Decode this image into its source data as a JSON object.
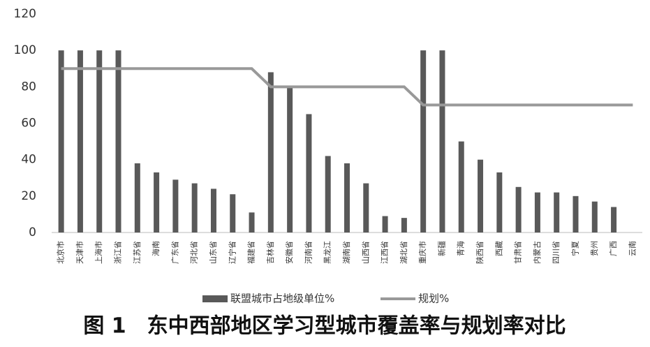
{
  "chart_data": {
    "type": "bar",
    "title": "图 1　东中西部地区学习型城市覆盖率与规划率对比",
    "categories": [
      "北京市",
      "天津市",
      "上海市",
      "浙江省",
      "江苏省",
      "海南",
      "广东省",
      "河北省",
      "山东省",
      "辽宁省",
      "福建省",
      "吉林省",
      "安徽省",
      "河南省",
      "黑龙江",
      "湖南省",
      "山西省",
      "江西省",
      "湖北省",
      "重庆市",
      "新疆",
      "青海",
      "陕西省",
      "西藏",
      "甘肃省",
      "内蒙古",
      "四川省",
      "宁夏",
      "贵州",
      "广西",
      "云南"
    ],
    "series": [
      {
        "name": "联盟城市占地级单位%",
        "type": "bar",
        "color": "#595959",
        "values": [
          100,
          100,
          100,
          100,
          38,
          33,
          29,
          27,
          24,
          21,
          11,
          88,
          80,
          65,
          42,
          38,
          27,
          9,
          8,
          100,
          100,
          50,
          40,
          33,
          25,
          22,
          22,
          20,
          17,
          14,
          0
        ]
      },
      {
        "name": "规划%",
        "type": "line",
        "color": "#999999",
        "values": [
          90,
          90,
          90,
          90,
          90,
          90,
          90,
          90,
          90,
          90,
          90,
          80,
          80,
          80,
          80,
          80,
          80,
          80,
          80,
          70,
          70,
          70,
          70,
          70,
          70,
          70,
          70,
          70,
          70,
          70,
          70
        ]
      }
    ],
    "ylim": [
      0,
      120
    ],
    "yticks": [
      0,
      20,
      40,
      60,
      80,
      100,
      120
    ],
    "grid": false
  }
}
